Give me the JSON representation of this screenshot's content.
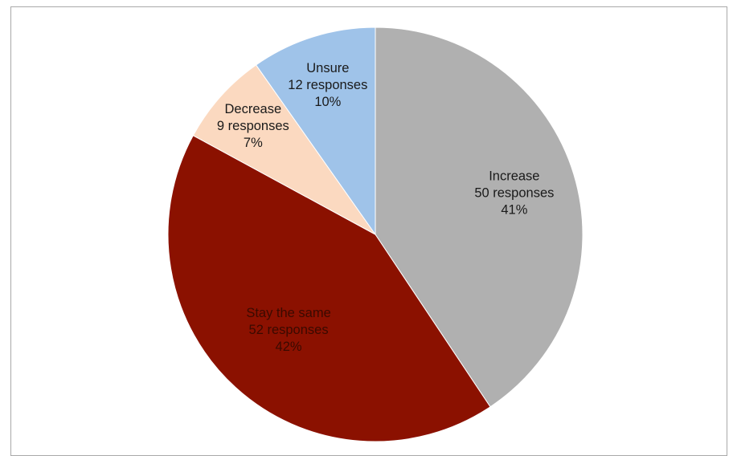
{
  "chart_data": {
    "type": "pie",
    "title": "",
    "slices": [
      {
        "label": "Increase",
        "count_text": "50 responses",
        "percent_text": "41%",
        "value": 50,
        "percent": 41,
        "color": "#b0b0b0",
        "text_color": "#1a1a1a"
      },
      {
        "label": "Stay the same",
        "count_text": "52 responses",
        "percent_text": "42%",
        "value": 52,
        "percent": 42,
        "color": "#8b1100",
        "text_color": "#3a0a00"
      },
      {
        "label": "Decrease",
        "count_text": "9 responses",
        "percent_text": "7%",
        "value": 9,
        "percent": 7,
        "color": "#fbd9c0",
        "text_color": "#1a1a1a"
      },
      {
        "label": "Unsure",
        "count_text": "12 responses",
        "percent_text": "10%",
        "value": 12,
        "percent": 10,
        "color": "#9fc3e9",
        "text_color": "#1a1a1a"
      }
    ],
    "start_angle_deg": 0,
    "direction": "clockwise",
    "legend": "none"
  }
}
